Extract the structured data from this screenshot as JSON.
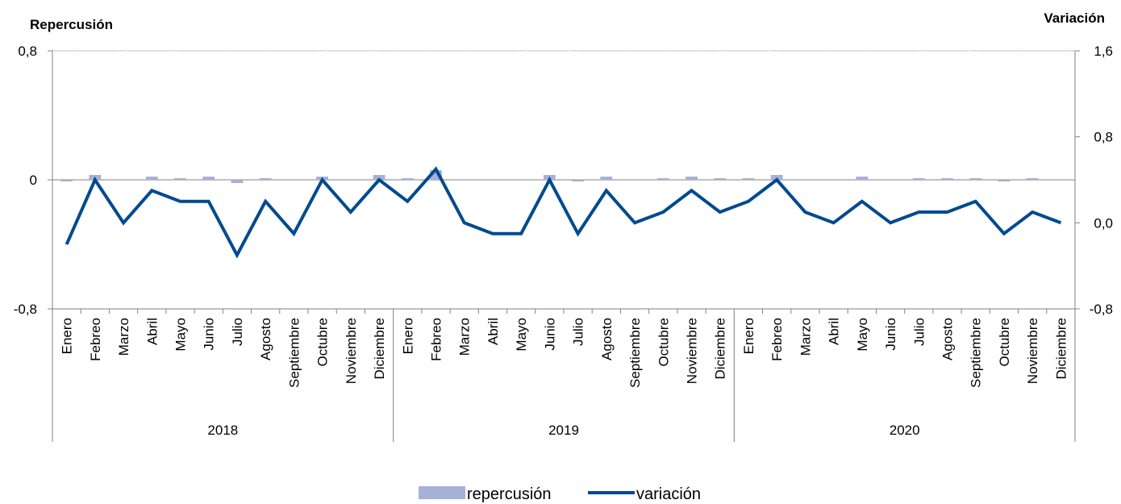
{
  "chart_data": {
    "type": "bar+line",
    "left_axis_title": "Repercusión",
    "right_axis_title": "Variación",
    "left_ticks": [
      "0,8",
      "0",
      "-0,8"
    ],
    "right_ticks": [
      "1,6",
      "0,8",
      "0,0",
      "-0,8"
    ],
    "ylim_left": [
      -0.8,
      0.8
    ],
    "ylim_right": [
      -0.8,
      1.6
    ],
    "years": [
      "2018",
      "2019",
      "2020"
    ],
    "months": [
      "Enero",
      "Febreo",
      "Marzo",
      "Abril",
      "Mayo",
      "Junio",
      "Julio",
      "Agosto",
      "Septiembre",
      "Octubre",
      "Noviembre",
      "Diciembre",
      "Enero",
      "Febreo",
      "Marzo",
      "Abril",
      "Mayo",
      "Junio",
      "Julio",
      "Agosto",
      "Septiembre",
      "Octubre",
      "Noviembre",
      "Diciembre",
      "Enero",
      "Febreo",
      "Marzo",
      "Abril",
      "Mayo",
      "Junio",
      "Julio",
      "Agosto",
      "Septiembre",
      "Octubre",
      "Noviembre",
      "Diciembre"
    ],
    "series": [
      {
        "name": "repercusión",
        "type": "bar",
        "axis": "left",
        "color": "#a6b0d8",
        "values": [
          -0.01,
          0.03,
          0.0,
          0.02,
          0.01,
          0.02,
          -0.02,
          0.01,
          0.0,
          0.02,
          0.0,
          0.03,
          0.01,
          0.06,
          0.0,
          0.0,
          0.0,
          0.03,
          -0.01,
          0.02,
          0.0,
          0.01,
          0.02,
          0.01,
          0.01,
          0.03,
          0.0,
          0.0,
          0.02,
          0.0,
          0.01,
          0.01,
          0.01,
          -0.01,
          0.01,
          0.0
        ]
      },
      {
        "name": "variación",
        "type": "line",
        "axis": "right",
        "color": "#004a8f",
        "values": [
          -0.2,
          0.4,
          0.0,
          0.3,
          0.2,
          0.2,
          -0.3,
          0.2,
          -0.1,
          0.4,
          0.1,
          0.4,
          0.2,
          0.5,
          0.0,
          -0.1,
          -0.1,
          0.4,
          -0.1,
          0.3,
          0.0,
          0.1,
          0.3,
          0.1,
          0.2,
          0.4,
          0.1,
          0.0,
          0.2,
          0.0,
          0.1,
          0.1,
          0.2,
          -0.1,
          0.1,
          0.0
        ]
      }
    ],
    "legend_position": "bottom-center",
    "grid": "top gridline only (dotted)"
  }
}
